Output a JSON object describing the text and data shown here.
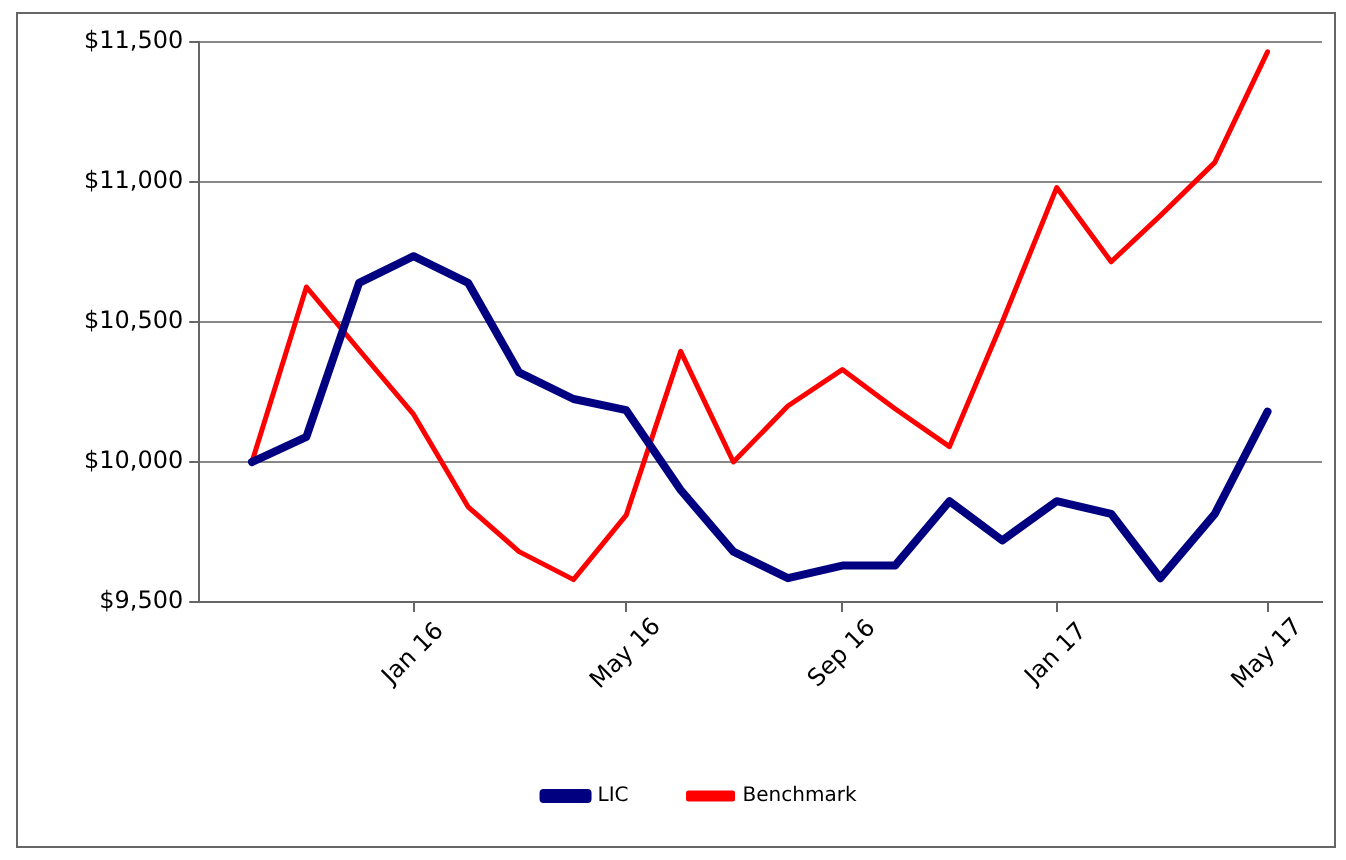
{
  "chart_data": {
    "type": "line",
    "x": [
      "2015-10",
      "2015-11",
      "2015-12",
      "2016-01",
      "2016-02",
      "2016-03",
      "2016-04",
      "2016-05",
      "2016-06",
      "2016-07",
      "2016-08",
      "2016-09",
      "2016-10",
      "2016-11",
      "2016-12",
      "2017-01",
      "2017-02",
      "2017-03",
      "2017-04",
      "2017-05"
    ],
    "series": [
      {
        "name": "LIC",
        "color": "#000080",
        "values": [
          10000,
          10090,
          10640,
          10735,
          10640,
          10320,
          10225,
          10185,
          9900,
          9680,
          9585,
          9630,
          9630,
          9860,
          9720,
          9860,
          9815,
          9585,
          9815,
          10180
        ]
      },
      {
        "name": "Benchmark",
        "color": "#ff0000",
        "values": [
          10000,
          10625,
          10400,
          10170,
          9840,
          9680,
          9580,
          9810,
          10395,
          10000,
          10200,
          10330,
          10190,
          10055,
          10500,
          10980,
          10715,
          10880,
          11070,
          11465
        ]
      }
    ],
    "xlim": [
      "2015-09",
      "2017-06"
    ],
    "xticks": [
      {
        "value": "2016-01",
        "label": "Jan 16"
      },
      {
        "value": "2016-05",
        "label": "May 16"
      },
      {
        "value": "2016-09",
        "label": "Sep 16"
      },
      {
        "value": "2017-01",
        "label": "Jan 17"
      },
      {
        "value": "2017-05",
        "label": "May 17"
      }
    ],
    "ylim": [
      9500,
      11500
    ],
    "yticks": [
      {
        "value": 9500,
        "label": "$9,500"
      },
      {
        "value": 10000,
        "label": "$10,000"
      },
      {
        "value": 10500,
        "label": "$10,500"
      },
      {
        "value": 11000,
        "label": "$11,000"
      },
      {
        "value": 11500,
        "label": "$11,500"
      }
    ],
    "grid": "y",
    "legend": "bottom",
    "marker": "none",
    "line_style": "solid"
  }
}
